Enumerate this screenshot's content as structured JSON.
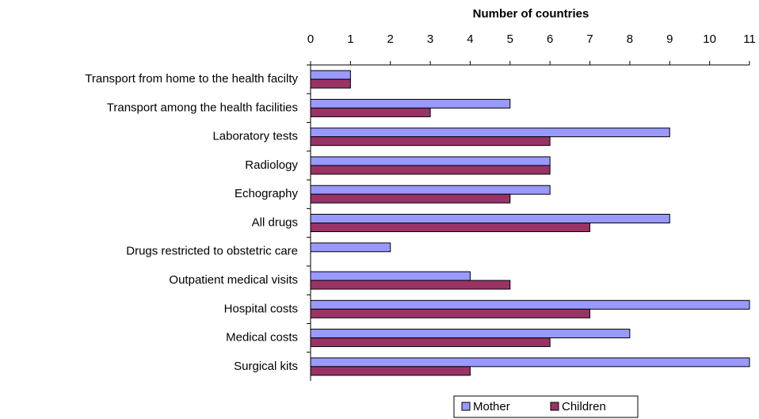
{
  "chart_data": {
    "type": "bar",
    "orientation": "horizontal",
    "x_label": "Number of countries",
    "categories": [
      "Transport from home to the health facilty",
      "Transport among the health facilities",
      "Laboratory tests",
      "Radiology",
      "Echography",
      "All drugs",
      "Drugs restricted to obstetric care",
      "Outpatient medical visits",
      "Hospital costs",
      "Medical costs",
      "Surgical kits"
    ],
    "series": [
      {
        "name": "Mother",
        "color": "#9999ff",
        "values": [
          1,
          5,
          9,
          6,
          6,
          9,
          2,
          4,
          11,
          8,
          11
        ]
      },
      {
        "name": "Children",
        "color": "#993366",
        "values": [
          1,
          3,
          6,
          6,
          5,
          7,
          0,
          5,
          7,
          6,
          4
        ]
      }
    ],
    "xlim": [
      0,
      11
    ],
    "xticks": [
      0,
      1,
      2,
      3,
      4,
      5,
      6,
      7,
      8,
      9,
      10,
      11
    ],
    "legend": "bottom"
  }
}
